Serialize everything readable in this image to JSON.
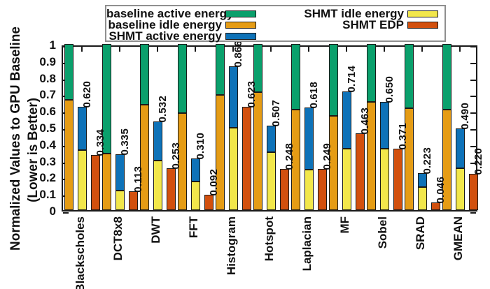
{
  "figure": {
    "y_axis_title_line1": "Normalized Values to GPU Baseline",
    "y_axis_title_line2": "(Lower is Better)"
  },
  "legend": {
    "items": [
      {
        "label": "baseline active energy",
        "color": "#0aa06c",
        "column": 1,
        "row": 1
      },
      {
        "label": "baseline idle energy",
        "color": "#e59c15",
        "column": 1,
        "row": 2
      },
      {
        "label": "SHMT active energy",
        "color": "#0e72b8",
        "column": 1,
        "row": 3
      },
      {
        "label": "SHMT idle energy",
        "color": "#f2e74b",
        "column": 2,
        "row": 1
      },
      {
        "label": "SHMT EDP",
        "color": "#d2500e",
        "column": 2,
        "row": 2
      }
    ]
  },
  "chart_data": {
    "type": "bar",
    "title": "",
    "xlabel": "",
    "ylabel": "Normalized Values to GPU Baseline (Lower is Better)",
    "ylim": [
      0,
      1
    ],
    "y_ticks": [
      "0",
      "0.1",
      "0.2",
      "0.3",
      "0.4",
      "0.5",
      "0.6",
      "0.7",
      "0.8",
      "0.9",
      "1"
    ],
    "grid": false,
    "legend_position": "top",
    "bars_per_category": [
      "baseline stack (idle bottom + active top, total 1.0)",
      "SHMT stack (idle bottom + active top)",
      "SHMT EDP"
    ],
    "colors": {
      "baseline_active": "#0aa06c",
      "baseline_idle": "#e59c15",
      "shmt_active": "#0e72b8",
      "shmt_idle": "#f2e74b",
      "shmt_edp": "#d2500e"
    },
    "categories": [
      "Blackscholes",
      "DCT8x8",
      "DWT",
      "FFT",
      "Histogram",
      "Hotspot",
      "Laplacian",
      "MF",
      "Sobel",
      "SRAD",
      "GMEAN"
    ],
    "groups": [
      {
        "category": "Blackscholes",
        "baseline_idle": 0.665,
        "baseline_active": 0.335,
        "baseline_total": 1.0,
        "shmt_idle": 0.36,
        "shmt_active": 0.26,
        "shmt_total": 0.62,
        "shmt_total_label": "0.620",
        "shmt_edp": 0.334,
        "shmt_edp_label": "0.334"
      },
      {
        "category": "DCT8x8",
        "baseline_idle": 0.342,
        "baseline_active": 0.658,
        "baseline_total": 1.0,
        "shmt_idle": 0.118,
        "shmt_active": 0.217,
        "shmt_total": 0.335,
        "shmt_total_label": "0.335",
        "shmt_edp": 0.113,
        "shmt_edp_label": "0.113"
      },
      {
        "category": "DWT",
        "baseline_idle": 0.636,
        "baseline_active": 0.364,
        "baseline_total": 1.0,
        "shmt_idle": 0.3,
        "shmt_active": 0.232,
        "shmt_total": 0.532,
        "shmt_total_label": "0.532",
        "shmt_edp": 0.253,
        "shmt_edp_label": "0.253"
      },
      {
        "category": "FFT",
        "baseline_idle": 0.584,
        "baseline_active": 0.416,
        "baseline_total": 1.0,
        "shmt_idle": 0.172,
        "shmt_active": 0.138,
        "shmt_total": 0.31,
        "shmt_total_label": "0.310",
        "shmt_edp": 0.092,
        "shmt_edp_label": "0.092"
      },
      {
        "category": "Histogram",
        "baseline_idle": 0.693,
        "baseline_active": 0.307,
        "baseline_total": 1.0,
        "shmt_idle": 0.495,
        "shmt_active": 0.371,
        "shmt_total": 0.866,
        "shmt_total_label": "0.866",
        "shmt_edp": 0.623,
        "shmt_edp_label": "0.623"
      },
      {
        "category": "Hotspot",
        "baseline_idle": 0.71,
        "baseline_active": 0.29,
        "baseline_total": 1.0,
        "shmt_idle": 0.349,
        "shmt_active": 0.158,
        "shmt_total": 0.507,
        "shmt_total_label": "0.507",
        "shmt_edp": 0.248,
        "shmt_edp_label": "0.248"
      },
      {
        "category": "Laplacian",
        "baseline_idle": 0.605,
        "baseline_active": 0.395,
        "baseline_total": 1.0,
        "shmt_idle": 0.245,
        "shmt_active": 0.373,
        "shmt_total": 0.618,
        "shmt_total_label": "0.618",
        "shmt_edp": 0.249,
        "shmt_edp_label": "0.249"
      },
      {
        "category": "MF",
        "baseline_idle": 0.567,
        "baseline_active": 0.433,
        "baseline_total": 1.0,
        "shmt_idle": 0.368,
        "shmt_active": 0.346,
        "shmt_total": 0.714,
        "shmt_total_label": "0.714",
        "shmt_edp": 0.463,
        "shmt_edp_label": "0.463"
      },
      {
        "category": "Sobel",
        "baseline_idle": 0.651,
        "baseline_active": 0.349,
        "baseline_total": 1.0,
        "shmt_idle": 0.37,
        "shmt_active": 0.28,
        "shmt_total": 0.65,
        "shmt_total_label": "0.650",
        "shmt_edp": 0.371,
        "shmt_edp_label": "0.371"
      },
      {
        "category": "SRAD",
        "baseline_idle": 0.613,
        "baseline_active": 0.387,
        "baseline_total": 1.0,
        "shmt_idle": 0.14,
        "shmt_active": 0.083,
        "shmt_total": 0.223,
        "shmt_total_label": "0.223",
        "shmt_edp": 0.046,
        "shmt_edp_label": "0.046"
      },
      {
        "category": "GMEAN",
        "baseline_idle": 0.605,
        "baseline_active": 0.395,
        "baseline_total": 1.0,
        "shmt_idle": 0.252,
        "shmt_active": 0.238,
        "shmt_total": 0.49,
        "shmt_total_label": "0.490",
        "shmt_edp": 0.22,
        "shmt_edp_label": "0.220"
      }
    ]
  }
}
